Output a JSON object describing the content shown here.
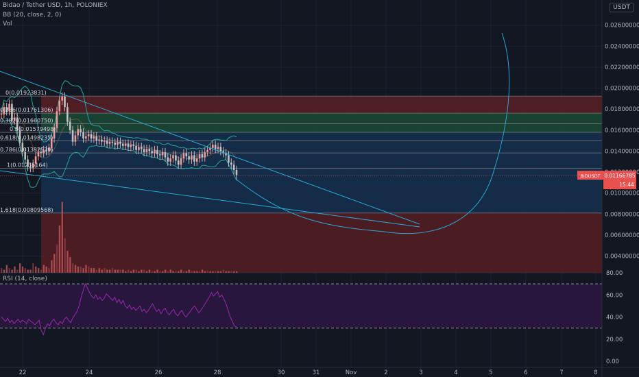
{
  "header": {
    "symbol_line": "Bidao / Tether USD, 1h, POLONIEX",
    "bb_line": "BB (20, close, 2, 0)",
    "vol_line": "Vol",
    "rsi_line": "RSI (14, close)",
    "currency_badge": "USDT"
  },
  "price_tag": {
    "symbol": "BIDUSDT",
    "value": "0.01166785",
    "countdown": "15:44"
  },
  "colors": {
    "background": "#131722",
    "grid": "#1e2230",
    "up": "#ef9a9a",
    "down": "#c2c2c2",
    "trend": "#29a9d6",
    "bb": "#26a69a",
    "rsi": "#9c27b0",
    "zone_red": "#5b1e24",
    "zone_green": "#1c4a36",
    "zone_blue": "#15304e",
    "tag": "#e8514f"
  },
  "chart_data": {
    "type": "candlestick",
    "x_tick_labels": [
      "22",
      "24",
      "26",
      "28",
      "30",
      "31",
      "Nov",
      "2",
      "3",
      "4",
      "5",
      "6",
      "7",
      "8"
    ],
    "y_ticks": [
      "0.02600000",
      "0.02400000",
      "0.02200000",
      "0.02000000",
      "0.01800000",
      "0.01600000",
      "0.01400000",
      "0.01200000",
      "0.01000000",
      "0.00800000",
      "0.00600000",
      "0.00400000"
    ],
    "y_range": [
      0.0024,
      0.0284
    ],
    "price_candles": [
      0.0175,
      0.0182,
      0.0178,
      0.0185,
      0.0169,
      0.0172,
      0.016,
      0.0148,
      0.0139,
      0.0132,
      0.0125,
      0.0124,
      0.0128,
      0.0135,
      0.0139,
      0.0138,
      0.0141,
      0.014,
      0.0143,
      0.0152,
      0.0162,
      0.0178,
      0.0188,
      0.0192,
      0.0182,
      0.0168,
      0.016,
      0.0149,
      0.0155,
      0.0161,
      0.0158,
      0.0152,
      0.0154,
      0.0156,
      0.0152,
      0.0154,
      0.015,
      0.0151,
      0.0149,
      0.015,
      0.0147,
      0.0149,
      0.0148,
      0.0146,
      0.0149,
      0.0147,
      0.0145,
      0.0147,
      0.0144,
      0.0146,
      0.0145,
      0.0141,
      0.0144,
      0.0142,
      0.0139,
      0.0142,
      0.014,
      0.0138,
      0.0141,
      0.0137,
      0.0136,
      0.0139,
      0.0134,
      0.013,
      0.0133,
      0.0136,
      0.0131,
      0.0127,
      0.0133,
      0.0138,
      0.0135,
      0.0132,
      0.0136,
      0.013,
      0.0133,
      0.0137,
      0.0134,
      0.0139,
      0.0141,
      0.0143,
      0.0146,
      0.0142,
      0.0144,
      0.014,
      0.0138,
      0.0136,
      0.0129,
      0.0127,
      0.0122,
      0.0117
    ],
    "fib_levels": [
      {
        "label": "0(0.01923831)",
        "value": 0.01923831
      },
      {
        "label": "0.236(0.01761306)",
        "value": 0.01761306
      },
      {
        "label": "0.382(0.01660750)",
        "value": 0.0166075
      },
      {
        "label": "0.5(0.01579498)",
        "value": 0.01579498
      },
      {
        "label": "0.618(0.01498235)",
        "value": 0.01498235
      },
      {
        "label": "0.786(0.01382539)",
        "value": 0.01382539
      },
      {
        "label": "1(0.01235164)",
        "value": 0.01235164
      },
      {
        "label": "1.618(0.00809568)",
        "value": 0.00809568
      }
    ],
    "fib_labels_shown": [
      "0(0.01923831)",
      "0.236(0.01761306)",
      "0.382(0.01660750)",
      "0.5(0.01579498)",
      "0.618(0.01498235)",
      "0.786(0.01382539)",
      "1(0.01235164)",
      "1.618(0.00809568)"
    ],
    "current_price": 0.01166785,
    "rsi": {
      "y_ticks": [
        "80.00",
        "60.00",
        "40.00",
        "20.00",
        "0.00"
      ],
      "y_range": [
        0,
        80
      ],
      "upper_band": 70,
      "lower_band": 30,
      "values": [
        40,
        38,
        36,
        39,
        35,
        37,
        34,
        36,
        38,
        35,
        37,
        36,
        34,
        38,
        36,
        35,
        33,
        35,
        37,
        28,
        24,
        30,
        34,
        32,
        36,
        38,
        35,
        33,
        36,
        34,
        38,
        40,
        37,
        35,
        39,
        42,
        45,
        50,
        58,
        64,
        70,
        66,
        62,
        59,
        57,
        60,
        56,
        58,
        55,
        57,
        61,
        59,
        57,
        55,
        58,
        53,
        56,
        52,
        55,
        50,
        48,
        51,
        47,
        49,
        46,
        48,
        50,
        45,
        47,
        44,
        46,
        49,
        52,
        48,
        45,
        47,
        43,
        46,
        48,
        44,
        42,
        45,
        47,
        43,
        41,
        44,
        46,
        42,
        40,
        43,
        45,
        48,
        50,
        47,
        44,
        46,
        49,
        52,
        55,
        58,
        62,
        59,
        61,
        63,
        58,
        60,
        56,
        52,
        46,
        40,
        36,
        32,
        31
      ]
    },
    "volume": [
      3,
      2,
      5,
      3,
      2,
      4,
      2,
      6,
      4,
      3,
      2,
      2,
      6,
      4,
      3,
      2,
      5,
      4,
      3,
      8,
      12,
      18,
      30,
      45,
      22,
      14,
      10,
      6,
      5,
      4,
      4,
      3,
      5,
      4,
      3,
      3,
      2,
      3,
      2,
      3,
      2,
      2,
      3,
      2,
      2,
      2,
      2,
      1,
      2,
      1,
      2,
      2,
      1,
      2,
      2,
      1,
      2,
      1,
      1,
      2,
      1,
      1,
      2,
      1,
      2,
      1,
      1,
      1,
      2,
      1,
      1,
      2,
      1,
      1,
      1,
      1,
      2,
      1,
      1,
      1,
      1,
      1,
      1,
      1,
      2,
      1,
      1,
      1,
      1,
      1
    ]
  }
}
